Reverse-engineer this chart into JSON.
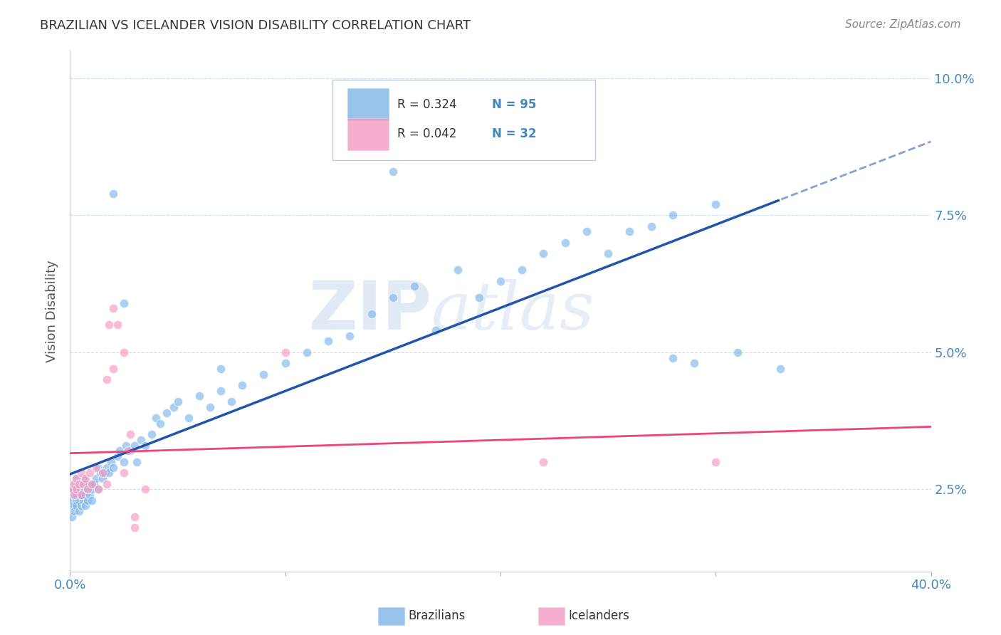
{
  "title": "BRAZILIAN VS ICELANDER VISION DISABILITY CORRELATION CHART",
  "source": "Source: ZipAtlas.com",
  "ylabel": "Vision Disability",
  "xlim": [
    0.0,
    0.4
  ],
  "ylim": [
    0.01,
    0.105
  ],
  "xticks": [
    0.0,
    0.1,
    0.2,
    0.3,
    0.4
  ],
  "xtick_labels": [
    "0.0%",
    "",
    "",
    "",
    "40.0%"
  ],
  "yticks": [
    0.025,
    0.05,
    0.075,
    0.1
  ],
  "ytick_labels": [
    "2.5%",
    "5.0%",
    "7.5%",
    "10.0%"
  ],
  "blue_color": "#7EB6E8",
  "pink_color": "#F49AC2",
  "trend_blue": "#2255AA",
  "trend_pink": "#EE4477",
  "watermark_zip": "ZIP",
  "watermark_atlas": "atlas",
  "legend_r_blue": "R = 0.324",
  "legend_n_blue": "N = 95",
  "legend_r_pink": "R = 0.042",
  "legend_n_pink": "N = 32",
  "label_brazilians": "Brazilians",
  "label_icelanders": "Icelanders",
  "brazil_x": [
    0.001,
    0.001,
    0.001,
    0.001,
    0.002,
    0.002,
    0.002,
    0.002,
    0.002,
    0.003,
    0.003,
    0.003,
    0.003,
    0.003,
    0.004,
    0.004,
    0.004,
    0.004,
    0.005,
    0.005,
    0.005,
    0.005,
    0.006,
    0.006,
    0.006,
    0.007,
    0.007,
    0.007,
    0.008,
    0.008,
    0.009,
    0.009,
    0.01,
    0.01,
    0.011,
    0.012,
    0.013,
    0.013,
    0.014,
    0.015,
    0.016,
    0.017,
    0.018,
    0.019,
    0.02,
    0.022,
    0.023,
    0.025,
    0.026,
    0.028,
    0.03,
    0.031,
    0.033,
    0.035,
    0.038,
    0.04,
    0.042,
    0.045,
    0.048,
    0.05,
    0.055,
    0.06,
    0.065,
    0.07,
    0.075,
    0.08,
    0.09,
    0.1,
    0.11,
    0.12,
    0.13,
    0.14,
    0.15,
    0.16,
    0.17,
    0.18,
    0.19,
    0.2,
    0.21,
    0.22,
    0.23,
    0.24,
    0.25,
    0.26,
    0.27,
    0.28,
    0.29,
    0.3,
    0.31,
    0.02,
    0.025,
    0.07,
    0.15,
    0.28,
    0.33
  ],
  "brazil_y": [
    0.022,
    0.025,
    0.02,
    0.023,
    0.024,
    0.026,
    0.022,
    0.025,
    0.021,
    0.023,
    0.025,
    0.027,
    0.022,
    0.024,
    0.021,
    0.024,
    0.026,
    0.023,
    0.022,
    0.025,
    0.024,
    0.026,
    0.023,
    0.025,
    0.027,
    0.022,
    0.024,
    0.026,
    0.023,
    0.025,
    0.024,
    0.026,
    0.023,
    0.025,
    0.026,
    0.027,
    0.029,
    0.025,
    0.028,
    0.027,
    0.028,
    0.029,
    0.028,
    0.03,
    0.029,
    0.031,
    0.032,
    0.03,
    0.033,
    0.032,
    0.033,
    0.03,
    0.034,
    0.033,
    0.035,
    0.038,
    0.037,
    0.039,
    0.04,
    0.041,
    0.038,
    0.042,
    0.04,
    0.043,
    0.041,
    0.044,
    0.046,
    0.048,
    0.05,
    0.052,
    0.053,
    0.057,
    0.06,
    0.062,
    0.054,
    0.065,
    0.06,
    0.063,
    0.065,
    0.068,
    0.07,
    0.072,
    0.068,
    0.072,
    0.073,
    0.075,
    0.048,
    0.077,
    0.05,
    0.079,
    0.059,
    0.047,
    0.083,
    0.049,
    0.047
  ],
  "iceland_x": [
    0.001,
    0.002,
    0.002,
    0.003,
    0.003,
    0.004,
    0.005,
    0.005,
    0.006,
    0.007,
    0.008,
    0.009,
    0.01,
    0.012,
    0.013,
    0.015,
    0.017,
    0.018,
    0.02,
    0.022,
    0.025,
    0.027,
    0.03,
    0.017,
    0.02,
    0.025,
    0.028,
    0.035,
    0.1,
    0.22,
    0.3,
    0.03
  ],
  "iceland_y": [
    0.025,
    0.024,
    0.026,
    0.025,
    0.027,
    0.026,
    0.024,
    0.028,
    0.026,
    0.027,
    0.025,
    0.028,
    0.026,
    0.029,
    0.025,
    0.028,
    0.026,
    0.055,
    0.058,
    0.055,
    0.028,
    0.032,
    0.018,
    0.045,
    0.047,
    0.05,
    0.035,
    0.025,
    0.05,
    0.03,
    0.03,
    0.02
  ]
}
